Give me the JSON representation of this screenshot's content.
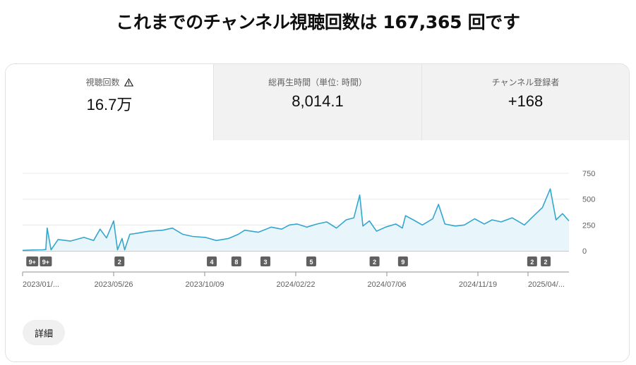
{
  "headline": "これまでのチャンネル視聴回数は 167,365 回です",
  "tabs": [
    {
      "label": "視聴回数",
      "value": "16.7万",
      "icon": "warning-icon"
    },
    {
      "label": "総再生時間（単位: 時間）",
      "value": "8,014.1"
    },
    {
      "label": "チャンネル登録者",
      "value": "+168"
    }
  ],
  "details_label": "詳細",
  "colors": {
    "line": "#33a6cf",
    "fill": "#e8f5fb",
    "badge": "#606060"
  },
  "chart_data": {
    "type": "area",
    "y_ticks": [
      "750",
      "500",
      "250",
      "0"
    ],
    "ylim": [
      0,
      750
    ],
    "x_tick_labels": [
      "2023/01/...",
      "2023/05/26",
      "2023/10/09",
      "2024/02/22",
      "2024/07/06",
      "2024/11/19",
      "2025/04/..."
    ],
    "xlim": [
      "2023-01-05",
      "2025-04-30"
    ],
    "badges": [
      {
        "label": "9+",
        "date": "2023-01-20"
      },
      {
        "label": "9+",
        "date": "2023-02-10"
      },
      {
        "label": "2",
        "date": "2023-06-04"
      },
      {
        "label": "4",
        "date": "2023-10-25"
      },
      {
        "label": "8",
        "date": "2023-12-02"
      },
      {
        "label": "3",
        "date": "2024-01-16"
      },
      {
        "label": "5",
        "date": "2024-03-27"
      },
      {
        "label": "2",
        "date": "2024-07-03"
      },
      {
        "label": "9",
        "date": "2024-08-16"
      },
      {
        "label": "2",
        "date": "2025-03-04"
      },
      {
        "label": "2",
        "date": "2025-03-25"
      }
    ],
    "series": [
      {
        "points": [
          [
            "2023-01-05",
            5
          ],
          [
            "2023-01-20",
            8
          ],
          [
            "2023-02-05",
            10
          ],
          [
            "2023-02-10",
            12
          ],
          [
            "2023-02-12",
            220
          ],
          [
            "2023-02-18",
            10
          ],
          [
            "2023-03-01",
            110
          ],
          [
            "2023-03-20",
            95
          ],
          [
            "2023-04-10",
            130
          ],
          [
            "2023-04-25",
            100
          ],
          [
            "2023-05-05",
            210
          ],
          [
            "2023-05-15",
            125
          ],
          [
            "2023-05-26",
            290
          ],
          [
            "2023-06-01",
            10
          ],
          [
            "2023-06-08",
            120
          ],
          [
            "2023-06-12",
            10
          ],
          [
            "2023-06-20",
            160
          ],
          [
            "2023-07-01",
            170
          ],
          [
            "2023-07-20",
            190
          ],
          [
            "2023-08-10",
            200
          ],
          [
            "2023-08-25",
            220
          ],
          [
            "2023-09-10",
            160
          ],
          [
            "2023-09-25",
            140
          ],
          [
            "2023-10-15",
            130
          ],
          [
            "2023-11-01",
            100
          ],
          [
            "2023-11-20",
            120
          ],
          [
            "2023-12-05",
            160
          ],
          [
            "2023-12-15",
            200
          ],
          [
            "2024-01-05",
            180
          ],
          [
            "2024-01-25",
            230
          ],
          [
            "2024-02-10",
            210
          ],
          [
            "2024-02-22",
            250
          ],
          [
            "2024-03-05",
            260
          ],
          [
            "2024-03-20",
            230
          ],
          [
            "2024-04-05",
            260
          ],
          [
            "2024-04-20",
            280
          ],
          [
            "2024-05-05",
            220
          ],
          [
            "2024-05-20",
            300
          ],
          [
            "2024-06-01",
            320
          ],
          [
            "2024-06-10",
            540
          ],
          [
            "2024-06-15",
            240
          ],
          [
            "2024-06-25",
            290
          ],
          [
            "2024-07-06",
            190
          ],
          [
            "2024-07-20",
            230
          ],
          [
            "2024-08-05",
            260
          ],
          [
            "2024-08-15",
            220
          ],
          [
            "2024-08-20",
            340
          ],
          [
            "2024-09-01",
            300
          ],
          [
            "2024-09-15",
            250
          ],
          [
            "2024-10-01",
            310
          ],
          [
            "2024-10-10",
            450
          ],
          [
            "2024-10-20",
            260
          ],
          [
            "2024-11-05",
            240
          ],
          [
            "2024-11-19",
            250
          ],
          [
            "2024-12-05",
            310
          ],
          [
            "2024-12-20",
            260
          ],
          [
            "2025-01-01",
            300
          ],
          [
            "2025-01-15",
            280
          ],
          [
            "2025-02-01",
            320
          ],
          [
            "2025-02-20",
            250
          ],
          [
            "2025-03-05",
            330
          ],
          [
            "2025-03-20",
            420
          ],
          [
            "2025-04-01",
            600
          ],
          [
            "2025-04-10",
            300
          ],
          [
            "2025-04-20",
            360
          ],
          [
            "2025-04-30",
            290
          ]
        ]
      }
    ]
  }
}
